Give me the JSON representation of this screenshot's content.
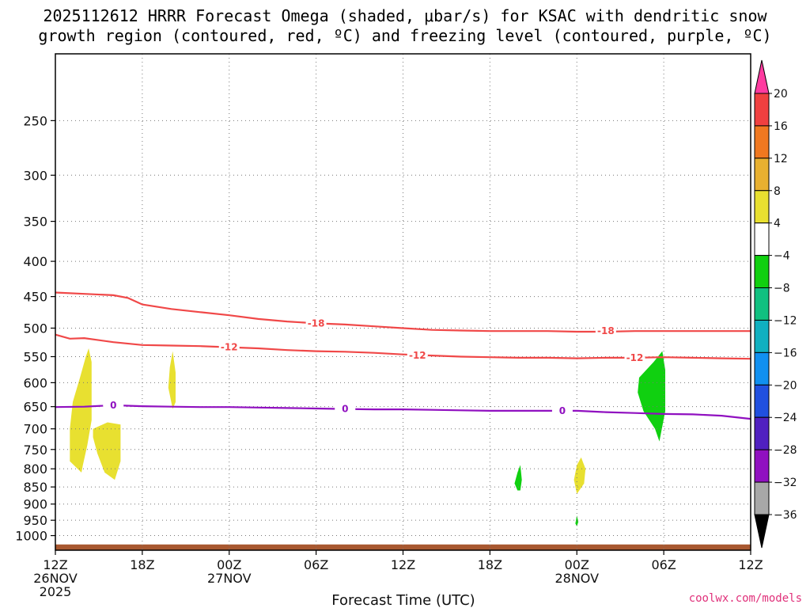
{
  "title_line1": "2025112612 HRRR Forecast Omega (shaded, μbar/s) for KSAC with dendritic snow",
  "title_line2": "growth region (contoured, red, ºC) and freezing level (contoured, purple, ºC)",
  "credit": "coolwx.com/models",
  "chart_data": {
    "type": "heatmap",
    "xlabel": "Forecast Time (UTC)",
    "x_range": [
      0,
      48
    ],
    "x_unit": "hours from 2025-11-26 12Z",
    "x_ticks": [
      {
        "h": 0,
        "line1": "12Z",
        "line2": "26NOV",
        "line3": "2025"
      },
      {
        "h": 6,
        "line1": "18Z",
        "line2": "",
        "line3": ""
      },
      {
        "h": 12,
        "line1": "00Z",
        "line2": "27NOV",
        "line3": ""
      },
      {
        "h": 18,
        "line1": "06Z",
        "line2": "",
        "line3": ""
      },
      {
        "h": 24,
        "line1": "12Z",
        "line2": "",
        "line3": ""
      },
      {
        "h": 30,
        "line1": "18Z",
        "line2": "",
        "line3": ""
      },
      {
        "h": 36,
        "line1": "00Z",
        "line2": "28NOV",
        "line3": ""
      },
      {
        "h": 42,
        "line1": "06Z",
        "line2": "",
        "line3": ""
      },
      {
        "h": 48,
        "line1": "12Z",
        "line2": "",
        "line3": ""
      }
    ],
    "y_axis": "pressure (hPa), log scale, inverted",
    "y_range": [
      1050,
      200
    ],
    "y_ticks": [
      250,
      300,
      350,
      400,
      450,
      500,
      550,
      600,
      650,
      700,
      750,
      800,
      850,
      900,
      950,
      1000
    ],
    "grid": true,
    "colorbar": {
      "unit": "μbar/s",
      "labels": [
        "20",
        "16",
        "12",
        "8",
        "4",
        "−4",
        "−8",
        "−12",
        "−16",
        "−20",
        "−24",
        "−28",
        "−32",
        "−36"
      ],
      "colors": [
        "#ff3ba0",
        "#f04040",
        "#f07820",
        "#e8b030",
        "#e8e030",
        "#ffffff",
        "#10d010",
        "#10c080",
        "#10b0c0",
        "#1090f0",
        "#2050e0",
        "#5020c0",
        "#9010c0",
        "#a8a8a8",
        "#000000"
      ]
    },
    "series": [
      {
        "kind": "contour",
        "label": "-18",
        "color": "#f04848",
        "points": [
          [
            0,
            444
          ],
          [
            2,
            446
          ],
          [
            4,
            448
          ],
          [
            5,
            452
          ],
          [
            6,
            462
          ],
          [
            8,
            469
          ],
          [
            10,
            474
          ],
          [
            12,
            479
          ],
          [
            14,
            485
          ],
          [
            16,
            489
          ],
          [
            18,
            492
          ],
          [
            20,
            494
          ],
          [
            22,
            497
          ],
          [
            24,
            500
          ],
          [
            26,
            503
          ],
          [
            28,
            504
          ],
          [
            30,
            505
          ],
          [
            32,
            505
          ],
          [
            34,
            505
          ],
          [
            36,
            506
          ],
          [
            38,
            506
          ],
          [
            40,
            505
          ],
          [
            42,
            505
          ],
          [
            44,
            505
          ],
          [
            46,
            505
          ],
          [
            48,
            505
          ]
        ],
        "label_at": [
          [
            18,
            492
          ],
          [
            38,
            505
          ]
        ]
      },
      {
        "kind": "contour",
        "label": "-12",
        "color": "#f04848",
        "points": [
          [
            0,
            511
          ],
          [
            1,
            518
          ],
          [
            2,
            517
          ],
          [
            4,
            524
          ],
          [
            6,
            529
          ],
          [
            8,
            530
          ],
          [
            10,
            531
          ],
          [
            12,
            533
          ],
          [
            14,
            535
          ],
          [
            16,
            538
          ],
          [
            18,
            540
          ],
          [
            20,
            541
          ],
          [
            22,
            543
          ],
          [
            24,
            546
          ],
          [
            26,
            548
          ],
          [
            28,
            550
          ],
          [
            30,
            551
          ],
          [
            32,
            552
          ],
          [
            34,
            552
          ],
          [
            36,
            553
          ],
          [
            38,
            552
          ],
          [
            40,
            552
          ],
          [
            42,
            551
          ],
          [
            44,
            552
          ],
          [
            46,
            553
          ],
          [
            48,
            554
          ]
        ],
        "label_at": [
          [
            12,
            533
          ],
          [
            25,
            548
          ],
          [
            40,
            552
          ]
        ]
      },
      {
        "kind": "contour",
        "label": "0",
        "color": "#9010c0",
        "points": [
          [
            0,
            651
          ],
          [
            2,
            650
          ],
          [
            4,
            647
          ],
          [
            6,
            649
          ],
          [
            8,
            650
          ],
          [
            10,
            651
          ],
          [
            12,
            651
          ],
          [
            14,
            652
          ],
          [
            16,
            653
          ],
          [
            18,
            654
          ],
          [
            20,
            655
          ],
          [
            22,
            656
          ],
          [
            24,
            656
          ],
          [
            26,
            657
          ],
          [
            28,
            658
          ],
          [
            30,
            659
          ],
          [
            32,
            659
          ],
          [
            34,
            659
          ],
          [
            36,
            659
          ],
          [
            38,
            662
          ],
          [
            40,
            664
          ],
          [
            42,
            666
          ],
          [
            44,
            667
          ],
          [
            46,
            670
          ],
          [
            48,
            677
          ]
        ],
        "label_at": [
          [
            4,
            647
          ],
          [
            20,
            655
          ],
          [
            35,
            659
          ]
        ]
      }
    ],
    "regions": [
      {
        "kind": "omega",
        "color": "#e8e030",
        "value_band": "4 to 8",
        "points": [
          [
            1.8,
            810
          ],
          [
            1.0,
            780
          ],
          [
            1.0,
            700
          ],
          [
            1.2,
            640
          ],
          [
            1.7,
            590
          ],
          [
            2.1,
            550
          ],
          [
            2.3,
            535
          ],
          [
            2.5,
            560
          ],
          [
            2.5,
            680
          ],
          [
            2.2,
            740
          ],
          [
            1.9,
            790
          ]
        ]
      },
      {
        "kind": "omega",
        "color": "#e8e030",
        "value_band": "4 to 8",
        "points": [
          [
            2.6,
            700
          ],
          [
            3.6,
            685
          ],
          [
            4.5,
            690
          ],
          [
            4.5,
            780
          ],
          [
            4.1,
            830
          ],
          [
            3.4,
            810
          ],
          [
            2.9,
            760
          ],
          [
            2.6,
            720
          ]
        ]
      },
      {
        "kind": "omega",
        "color": "#e8e030",
        "value_band": "4 to 8",
        "points": [
          [
            8.1,
            655
          ],
          [
            7.8,
            610
          ],
          [
            7.9,
            570
          ],
          [
            8.1,
            540
          ],
          [
            8.3,
            580
          ],
          [
            8.3,
            640
          ]
        ]
      },
      {
        "kind": "omega",
        "color": "#10d010",
        "value_band": "-4 to -8",
        "points": [
          [
            40.6,
            660
          ],
          [
            40.2,
            620
          ],
          [
            40.3,
            590
          ],
          [
            41.3,
            560
          ],
          [
            41.9,
            540
          ],
          [
            42.1,
            575
          ],
          [
            42.1,
            660
          ],
          [
            41.7,
            730
          ],
          [
            41.4,
            700
          ]
        ]
      },
      {
        "kind": "omega",
        "color": "#10d010",
        "value_band": "-4 to -8",
        "points": [
          [
            31.9,
            860
          ],
          [
            31.7,
            840
          ],
          [
            31.9,
            810
          ],
          [
            32.1,
            790
          ],
          [
            32.2,
            830
          ],
          [
            32.1,
            860
          ]
        ]
      },
      {
        "kind": "omega",
        "color": "#e8e030",
        "value_band": "4 to 8",
        "points": [
          [
            36.0,
            870
          ],
          [
            35.8,
            830
          ],
          [
            36.0,
            790
          ],
          [
            36.3,
            770
          ],
          [
            36.6,
            800
          ],
          [
            36.5,
            840
          ]
        ]
      },
      {
        "kind": "omega",
        "color": "#10d010",
        "value_band": "-4 to -8",
        "points": [
          [
            35.9,
            960
          ],
          [
            36.0,
            935
          ],
          [
            36.1,
            955
          ],
          [
            36.0,
            970
          ]
        ]
      }
    ],
    "ground": {
      "color": "#a85830",
      "top_hpa": 1030
    }
  }
}
